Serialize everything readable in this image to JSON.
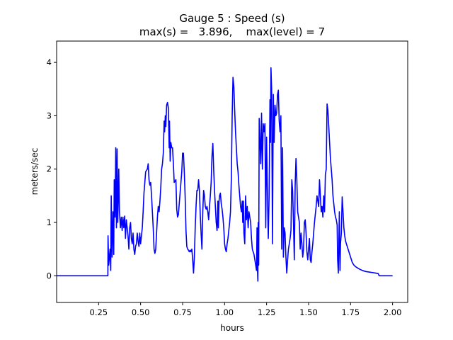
{
  "chart_data": {
    "type": "line",
    "title": "Gauge 5 : Speed (s)",
    "subtitle": "max(s) =   3.896,    max(level) = 7",
    "xlabel": "hours",
    "ylabel": "meters/sec",
    "xlim": [
      0.0,
      2.09
    ],
    "ylim": [
      -0.5,
      4.4
    ],
    "xticks": [
      0.25,
      0.5,
      0.75,
      1.0,
      1.25,
      1.5,
      1.75,
      2.0
    ],
    "xtick_labels": [
      "0.25",
      "0.50",
      "0.75",
      "1.00",
      "1.25",
      "1.50",
      "1.75",
      "2.00"
    ],
    "yticks": [
      0,
      1,
      2,
      3,
      4
    ],
    "ytick_labels": [
      "0",
      "1",
      "2",
      "3",
      "4"
    ],
    "grid": false,
    "series": [
      {
        "color": "#0000ff",
        "points": [
          [
            0.0,
            0.0
          ],
          [
            0.1,
            0.0
          ],
          [
            0.2,
            0.0
          ],
          [
            0.3,
            0.0
          ],
          [
            0.305,
            0.0
          ],
          [
            0.306,
            0.75
          ],
          [
            0.31,
            0.2
          ],
          [
            0.318,
            0.5
          ],
          [
            0.322,
            0.1
          ],
          [
            0.325,
            1.5
          ],
          [
            0.33,
            0.35
          ],
          [
            0.335,
            1.2
          ],
          [
            0.34,
            0.4
          ],
          [
            0.343,
            1.8
          ],
          [
            0.348,
            1.1
          ],
          [
            0.352,
            2.4
          ],
          [
            0.356,
            0.9
          ],
          [
            0.36,
            2.38
          ],
          [
            0.364,
            1.0
          ],
          [
            0.37,
            2.0
          ],
          [
            0.374,
            1.2
          ],
          [
            0.38,
            0.9
          ],
          [
            0.385,
            1.1
          ],
          [
            0.39,
            0.85
          ],
          [
            0.395,
            1.1
          ],
          [
            0.4,
            0.9
          ],
          [
            0.405,
            1.12
          ],
          [
            0.41,
            0.7
          ],
          [
            0.415,
            1.05
          ],
          [
            0.42,
            0.9
          ],
          [
            0.425,
            0.75
          ],
          [
            0.43,
            0.5
          ],
          [
            0.435,
            0.9
          ],
          [
            0.44,
            1.0
          ],
          [
            0.445,
            0.7
          ],
          [
            0.45,
            0.6
          ],
          [
            0.455,
            0.8
          ],
          [
            0.46,
            0.5
          ],
          [
            0.465,
            0.4
          ],
          [
            0.47,
            0.55
          ],
          [
            0.475,
            0.6
          ],
          [
            0.48,
            0.8
          ],
          [
            0.485,
            0.65
          ],
          [
            0.49,
            0.55
          ],
          [
            0.495,
            0.8
          ],
          [
            0.5,
            0.6
          ],
          [
            0.51,
            0.9
          ],
          [
            0.515,
            1.2
          ],
          [
            0.52,
            1.55
          ],
          [
            0.53,
            1.95
          ],
          [
            0.54,
            2.0
          ],
          [
            0.545,
            2.1
          ],
          [
            0.55,
            1.8
          ],
          [
            0.555,
            1.7
          ],
          [
            0.56,
            1.75
          ],
          [
            0.565,
            1.5
          ],
          [
            0.57,
            1.2
          ],
          [
            0.575,
            0.9
          ],
          [
            0.58,
            0.5
          ],
          [
            0.585,
            0.42
          ],
          [
            0.59,
            0.5
          ],
          [
            0.595,
            0.8
          ],
          [
            0.6,
            1.1
          ],
          [
            0.605,
            1.3
          ],
          [
            0.61,
            1.2
          ],
          [
            0.615,
            1.4
          ],
          [
            0.62,
            1.65
          ],
          [
            0.625,
            2.0
          ],
          [
            0.63,
            2.1
          ],
          [
            0.635,
            2.3
          ],
          [
            0.64,
            2.9
          ],
          [
            0.643,
            2.7
          ],
          [
            0.647,
            3.0
          ],
          [
            0.65,
            2.8
          ],
          [
            0.655,
            3.2
          ],
          [
            0.66,
            3.25
          ],
          [
            0.665,
            3.15
          ],
          [
            0.67,
            2.4
          ],
          [
            0.672,
            2.9
          ],
          [
            0.676,
            2.15
          ],
          [
            0.68,
            2.5
          ],
          [
            0.685,
            2.4
          ],
          [
            0.69,
            2.4
          ],
          [
            0.695,
            2.1
          ],
          [
            0.7,
            1.75
          ],
          [
            0.71,
            1.8
          ],
          [
            0.715,
            1.25
          ],
          [
            0.72,
            1.1
          ],
          [
            0.725,
            1.15
          ],
          [
            0.73,
            1.35
          ],
          [
            0.735,
            1.55
          ],
          [
            0.74,
            1.75
          ],
          [
            0.745,
            1.95
          ],
          [
            0.75,
            2.3
          ],
          [
            0.755,
            2.3
          ],
          [
            0.76,
            1.95
          ],
          [
            0.765,
            1.5
          ],
          [
            0.77,
            0.85
          ],
          [
            0.775,
            0.55
          ],
          [
            0.78,
            0.5
          ],
          [
            0.785,
            0.48
          ],
          [
            0.79,
            0.45
          ],
          [
            0.795,
            0.48
          ],
          [
            0.8,
            0.45
          ],
          [
            0.805,
            0.5
          ],
          [
            0.81,
            0.3
          ],
          [
            0.815,
            0.05
          ],
          [
            0.82,
            0.35
          ],
          [
            0.825,
            0.9
          ],
          [
            0.83,
            1.3
          ],
          [
            0.835,
            1.6
          ],
          [
            0.84,
            1.6
          ],
          [
            0.845,
            1.8
          ],
          [
            0.85,
            1.6
          ],
          [
            0.855,
            1.15
          ],
          [
            0.86,
            0.8
          ],
          [
            0.865,
            0.5
          ],
          [
            0.87,
            1.2
          ],
          [
            0.875,
            1.6
          ],
          [
            0.88,
            1.5
          ],
          [
            0.885,
            1.3
          ],
          [
            0.89,
            1.25
          ],
          [
            0.895,
            1.3
          ],
          [
            0.9,
            1.2
          ],
          [
            0.905,
            1.05
          ],
          [
            0.91,
            1.3
          ],
          [
            0.915,
            1.5
          ],
          [
            0.92,
            1.75
          ],
          [
            0.925,
            2.25
          ],
          [
            0.93,
            2.48
          ],
          [
            0.935,
            2.0
          ],
          [
            0.94,
            1.6
          ],
          [
            0.945,
            1.3
          ],
          [
            0.95,
            1.0
          ],
          [
            0.955,
            0.85
          ],
          [
            0.96,
            1.4
          ],
          [
            0.963,
            0.9
          ],
          [
            0.967,
            1.4
          ],
          [
            0.97,
            1.5
          ],
          [
            0.975,
            1.55
          ],
          [
            0.98,
            1.35
          ],
          [
            0.985,
            1.25
          ],
          [
            0.99,
            1.1
          ],
          [
            0.995,
            0.9
          ],
          [
            1.0,
            0.6
          ],
          [
            1.005,
            0.5
          ],
          [
            1.01,
            0.45
          ],
          [
            1.015,
            0.6
          ],
          [
            1.02,
            0.7
          ],
          [
            1.025,
            0.85
          ],
          [
            1.03,
            1.0
          ],
          [
            1.035,
            1.2
          ],
          [
            1.04,
            1.8
          ],
          [
            1.045,
            3.0
          ],
          [
            1.05,
            3.72
          ],
          [
            1.055,
            3.55
          ],
          [
            1.06,
            3.1
          ],
          [
            1.065,
            2.7
          ],
          [
            1.07,
            2.4
          ],
          [
            1.075,
            2.1
          ],
          [
            1.08,
            1.95
          ],
          [
            1.085,
            1.7
          ],
          [
            1.09,
            1.5
          ],
          [
            1.095,
            1.3
          ],
          [
            1.1,
            1.2
          ],
          [
            1.105,
            1.4
          ],
          [
            1.108,
            1.0
          ],
          [
            1.112,
            1.4
          ],
          [
            1.115,
            0.8
          ],
          [
            1.12,
            0.6
          ],
          [
            1.125,
            1.5
          ],
          [
            1.13,
            1.05
          ],
          [
            1.135,
            1.3
          ],
          [
            1.14,
            0.9
          ],
          [
            1.145,
            1.2
          ],
          [
            1.15,
            1.1
          ],
          [
            1.155,
            1.0
          ],
          [
            1.16,
            0.7
          ],
          [
            1.165,
            0.5
          ],
          [
            1.17,
            0.45
          ],
          [
            1.175,
            0.4
          ],
          [
            1.18,
            0.3
          ],
          [
            1.185,
            0.2
          ],
          [
            1.19,
            0.1
          ],
          [
            1.193,
            0.9
          ],
          [
            1.195,
            0.2
          ],
          [
            1.198,
            -0.1
          ],
          [
            1.2,
            1.0
          ],
          [
            1.203,
            0.2
          ],
          [
            1.206,
            2.95
          ],
          [
            1.21,
            2.6
          ],
          [
            1.215,
            2.1
          ],
          [
            1.22,
            3.05
          ],
          [
            1.225,
            2.0
          ],
          [
            1.23,
            2.85
          ],
          [
            1.235,
            2.7
          ],
          [
            1.24,
            2.85
          ],
          [
            1.245,
            0.9
          ],
          [
            1.25,
            2.6
          ],
          [
            1.255,
            1.5
          ],
          [
            1.26,
            0.7
          ],
          [
            1.265,
            1.5
          ],
          [
            1.27,
            3.3
          ],
          [
            1.273,
            2.5
          ],
          [
            1.276,
            3.9
          ],
          [
            1.28,
            3.5
          ],
          [
            1.285,
            0.6
          ],
          [
            1.29,
            3.4
          ],
          [
            1.295,
            2.5
          ],
          [
            1.3,
            3.2
          ],
          [
            1.305,
            3.0
          ],
          [
            1.31,
            3.05
          ],
          [
            1.315,
            3.4
          ],
          [
            1.32,
            3.48
          ],
          [
            1.325,
            2.9
          ],
          [
            1.33,
            2.7
          ],
          [
            1.335,
            3.0
          ],
          [
            1.34,
            0.5
          ],
          [
            1.345,
            2.4
          ],
          [
            1.35,
            0.35
          ],
          [
            1.355,
            0.9
          ],
          [
            1.36,
            0.8
          ],
          [
            1.365,
            0.35
          ],
          [
            1.37,
            0.05
          ],
          [
            1.375,
            0.3
          ],
          [
            1.38,
            0.5
          ],
          [
            1.385,
            0.6
          ],
          [
            1.39,
            0.7
          ],
          [
            1.395,
            0.85
          ],
          [
            1.4,
            1.8
          ],
          [
            1.405,
            1.6
          ],
          [
            1.41,
            1.0
          ],
          [
            1.415,
            0.3
          ],
          [
            1.42,
            1.7
          ],
          [
            1.425,
            2.2
          ],
          [
            1.43,
            1.8
          ],
          [
            1.435,
            1.2
          ],
          [
            1.44,
            1.1
          ],
          [
            1.445,
            1.0
          ],
          [
            1.45,
            0.5
          ],
          [
            1.455,
            0.8
          ],
          [
            1.46,
            0.6
          ],
          [
            1.465,
            0.35
          ],
          [
            1.47,
            0.5
          ],
          [
            1.475,
            1.0
          ],
          [
            1.48,
            1.05
          ],
          [
            1.485,
            0.8
          ],
          [
            1.49,
            0.45
          ],
          [
            1.495,
            0.3
          ],
          [
            1.5,
            0.5
          ],
          [
            1.505,
            0.7
          ],
          [
            1.51,
            0.3
          ],
          [
            1.515,
            0.25
          ],
          [
            1.52,
            0.45
          ],
          [
            1.525,
            0.6
          ],
          [
            1.53,
            0.8
          ],
          [
            1.535,
            1.0
          ],
          [
            1.54,
            1.15
          ],
          [
            1.545,
            1.3
          ],
          [
            1.55,
            1.5
          ],
          [
            1.555,
            1.4
          ],
          [
            1.56,
            1.3
          ],
          [
            1.565,
            1.8
          ],
          [
            1.57,
            1.5
          ],
          [
            1.575,
            1.2
          ],
          [
            1.58,
            1.3
          ],
          [
            1.585,
            1.1
          ],
          [
            1.59,
            1.5
          ],
          [
            1.595,
            1.2
          ],
          [
            1.6,
            1.9
          ],
          [
            1.605,
            2.0
          ],
          [
            1.61,
            3.22
          ],
          [
            1.615,
            3.1
          ],
          [
            1.62,
            2.8
          ],
          [
            1.625,
            2.5
          ],
          [
            1.63,
            2.2
          ],
          [
            1.635,
            2.0
          ],
          [
            1.64,
            1.8
          ],
          [
            1.645,
            1.5
          ],
          [
            1.65,
            1.35
          ],
          [
            1.655,
            1.2
          ],
          [
            1.66,
            1.1
          ],
          [
            1.665,
            1.05
          ],
          [
            1.67,
            0.95
          ],
          [
            1.673,
            0.3
          ],
          [
            1.677,
            0.05
          ],
          [
            1.68,
            0.6
          ],
          [
            1.683,
            1.2
          ],
          [
            1.687,
            0.1
          ],
          [
            1.69,
            0.6
          ],
          [
            1.695,
            0.8
          ],
          [
            1.7,
            1.48
          ],
          [
            1.705,
            1.2
          ],
          [
            1.71,
            0.9
          ],
          [
            1.715,
            0.75
          ],
          [
            1.72,
            0.65
          ],
          [
            1.73,
            0.55
          ],
          [
            1.74,
            0.45
          ],
          [
            1.75,
            0.35
          ],
          [
            1.76,
            0.25
          ],
          [
            1.77,
            0.2
          ],
          [
            1.78,
            0.17
          ],
          [
            1.8,
            0.13
          ],
          [
            1.82,
            0.1
          ],
          [
            1.84,
            0.08
          ],
          [
            1.86,
            0.07
          ],
          [
            1.88,
            0.06
          ],
          [
            1.9,
            0.05
          ],
          [
            1.915,
            0.04
          ],
          [
            1.92,
            0.0
          ],
          [
            1.94,
            0.0
          ],
          [
            1.96,
            0.0
          ],
          [
            2.0,
            0.0
          ]
        ]
      }
    ]
  }
}
